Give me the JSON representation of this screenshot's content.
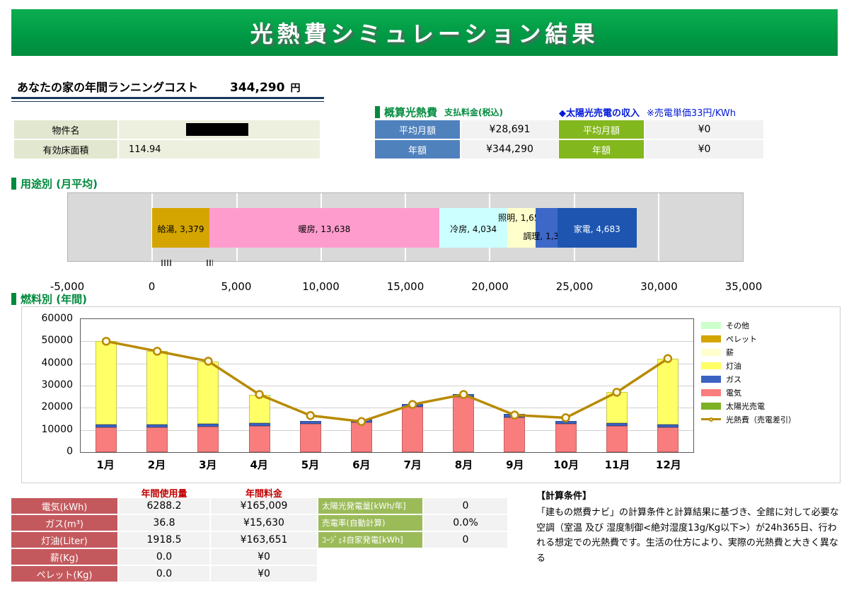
{
  "header": {
    "title": "光熱費シミュレーション結果"
  },
  "summary": {
    "label": "あなたの家の年間ランニングコスト",
    "value": "344,290",
    "unit": "円"
  },
  "property_table": {
    "rows": [
      {
        "label": "物件名",
        "value": ""
      },
      {
        "label": "有効床面積",
        "value": "114.94"
      }
    ]
  },
  "bill_section": {
    "title": "概算光熱費",
    "subtitle": "支払料金(税込)",
    "rows": [
      {
        "label": "平均月額",
        "value": "¥28,691"
      },
      {
        "label": "年額",
        "value": "¥344,290"
      }
    ]
  },
  "solar_income": {
    "title": "◆太陽光売電の収入",
    "note": "※売電単価33円/KWh",
    "rows": [
      {
        "label": "平均月額",
        "value": "¥0"
      },
      {
        "label": "年額",
        "value": "¥0"
      }
    ]
  },
  "usage_section_title": "用途別 (月平均)",
  "fuel_section_title": "燃料別 (年間)",
  "chart_data": [
    {
      "type": "bar",
      "orientation": "horizontal",
      "stacked": true,
      "title": "用途別 (月平均)",
      "xlim": [
        -5000,
        35000
      ],
      "xticks": [
        -5000,
        0,
        5000,
        10000,
        15000,
        20000,
        25000,
        30000,
        35000
      ],
      "xtick_labels": [
        "-5,000",
        "0",
        "5,000",
        "10,000",
        "15,000",
        "20,000",
        "25,000",
        "30,000",
        "35,000"
      ],
      "total": 28693,
      "segments": [
        {
          "name": "給湯",
          "value": 3379,
          "label": "給湯, 3,379",
          "color": "#d4a500",
          "label_color": "#000000",
          "label_pos": "mid"
        },
        {
          "name": "暖房",
          "value": 13638,
          "label": "暖房, 13,638",
          "color": "#ff9cce",
          "label_color": "#000000",
          "label_pos": "mid"
        },
        {
          "name": "冷房",
          "value": 4034,
          "label": "冷房, 4,034",
          "color": "#ccffff",
          "label_color": "#000000",
          "label_pos": "mid"
        },
        {
          "name": "照明",
          "value": 1656,
          "label": "照明, 1,656",
          "color": "#ffffcc",
          "label_color": "#000000",
          "label_pos": "high"
        },
        {
          "name": "調理",
          "value": 1303,
          "label": "調理, 1,303",
          "color": "#3e68c8",
          "label_color": "#000000",
          "label_pos": "low"
        },
        {
          "name": "家電",
          "value": 4683,
          "label": "家電, 4,683",
          "color": "#1d55b0",
          "label_color": "#ffffff",
          "label_pos": "mid"
        }
      ]
    },
    {
      "type": "bar+line",
      "stacked": true,
      "title": "燃料別 (年間)",
      "categories": [
        "1月",
        "2月",
        "3月",
        "4月",
        "5月",
        "6月",
        "7月",
        "8月",
        "9月",
        "10月",
        "11月",
        "12月"
      ],
      "ylim": [
        0,
        60000
      ],
      "yticks": [
        0,
        10000,
        20000,
        30000,
        40000,
        50000,
        60000
      ],
      "ytick_labels": [
        "0",
        "10000",
        "20000",
        "30000",
        "40000",
        "50000",
        "60000"
      ],
      "series": [
        {
          "name": "電気",
          "color": "#f97d7d",
          "values": [
            11200,
            11200,
            11500,
            11800,
            12800,
            13300,
            20500,
            25000,
            15800,
            12800,
            11800,
            11200
          ]
        },
        {
          "name": "ガス",
          "color": "#3b63c4",
          "values": [
            1300,
            1300,
            1300,
            1300,
            1300,
            1300,
            1300,
            1300,
            1300,
            1300,
            1300,
            1300
          ]
        },
        {
          "name": "灯油",
          "color": "#ffff66",
          "values": [
            37500,
            33000,
            28200,
            12900,
            0,
            0,
            0,
            0,
            0,
            0,
            13900,
            29700
          ]
        },
        {
          "name": "薪",
          "color": "#ffffcc",
          "values": [
            0,
            0,
            0,
            0,
            0,
            0,
            0,
            0,
            0,
            0,
            0,
            0
          ]
        },
        {
          "name": "ペレット",
          "color": "#d4a500",
          "values": [
            0,
            0,
            0,
            0,
            0,
            0,
            0,
            0,
            0,
            0,
            0,
            0
          ]
        },
        {
          "name": "その他",
          "color": "#ccffcc",
          "values": [
            0,
            0,
            0,
            0,
            0,
            0,
            0,
            0,
            0,
            0,
            0,
            0
          ]
        },
        {
          "name": "太陽光売電",
          "color": "#7db124",
          "values": [
            0,
            0,
            0,
            0,
            0,
            0,
            0,
            0,
            0,
            0,
            0,
            0
          ]
        }
      ],
      "line_series": {
        "name": "光熱費（売電差引）",
        "color": "#b88a00",
        "marker_fill": "#fff6df",
        "values": [
          50000,
          45500,
          41000,
          26000,
          16500,
          13800,
          21500,
          26000,
          16700,
          15500,
          27000,
          42200
        ]
      },
      "legend": [
        {
          "name": "その他",
          "color": "#ccffcc",
          "type": "rect"
        },
        {
          "name": "ペレット",
          "color": "#d4a500",
          "type": "rect"
        },
        {
          "name": "薪",
          "color": "#ffffcc",
          "type": "rect"
        },
        {
          "name": "灯油",
          "color": "#ffff66",
          "type": "rect"
        },
        {
          "name": "ガス",
          "color": "#3b63c4",
          "type": "rect"
        },
        {
          "name": "電気",
          "color": "#f97d7d",
          "type": "rect"
        },
        {
          "name": "太陽光売電",
          "color": "#7db124",
          "type": "rect"
        },
        {
          "name": "光熱費（売電差引）",
          "color": "#b88a00",
          "type": "line"
        }
      ]
    }
  ],
  "annual_table": {
    "col_headers": [
      "年間使用量",
      "年間料金"
    ],
    "rows": [
      {
        "label": "電気(kWh)",
        "usage": "6288.2",
        "cost": "¥165,009"
      },
      {
        "label": "ガス(m³)",
        "usage": "36.8",
        "cost": "¥15,630"
      },
      {
        "label": "灯油(Liter)",
        "usage": "1918.5",
        "cost": "¥163,651"
      },
      {
        "label": "薪(Kg)",
        "usage": "0.0",
        "cost": "¥0"
      },
      {
        "label": "ペレット(Kg)",
        "usage": "0.0",
        "cost": "¥0"
      }
    ]
  },
  "generation_table": {
    "rows": [
      {
        "label": "太陽光発電量[kWh/年]",
        "value": "0"
      },
      {
        "label": "売電率(自動計算)",
        "value": "0.0%"
      },
      {
        "label": "ｺｰｼﾞｪﾈ自家発電[kWh]",
        "value": "0"
      }
    ]
  },
  "conditions": {
    "title": "【計算条件】",
    "body": "「建もの燃費ナビ」の計算条件と計算結果に基づき、全館に対して必要な空調（室温 及び 湿度制御<絶対湿度13g/Kg以下>）が24h365日、行われる想定での光熱費です。生活の仕方により、実際の光熱費と大きく異なる"
  },
  "colors": {
    "banner_green": "#009a45",
    "header_blue_cell": "#4f81bd",
    "header_lime_cell": "#83b71e",
    "table_red_cell": "#c4595d",
    "table_green_cell": "#9bbb59",
    "accent_green_text": "#008a3d",
    "accent_blue_text": "#0019d6"
  }
}
